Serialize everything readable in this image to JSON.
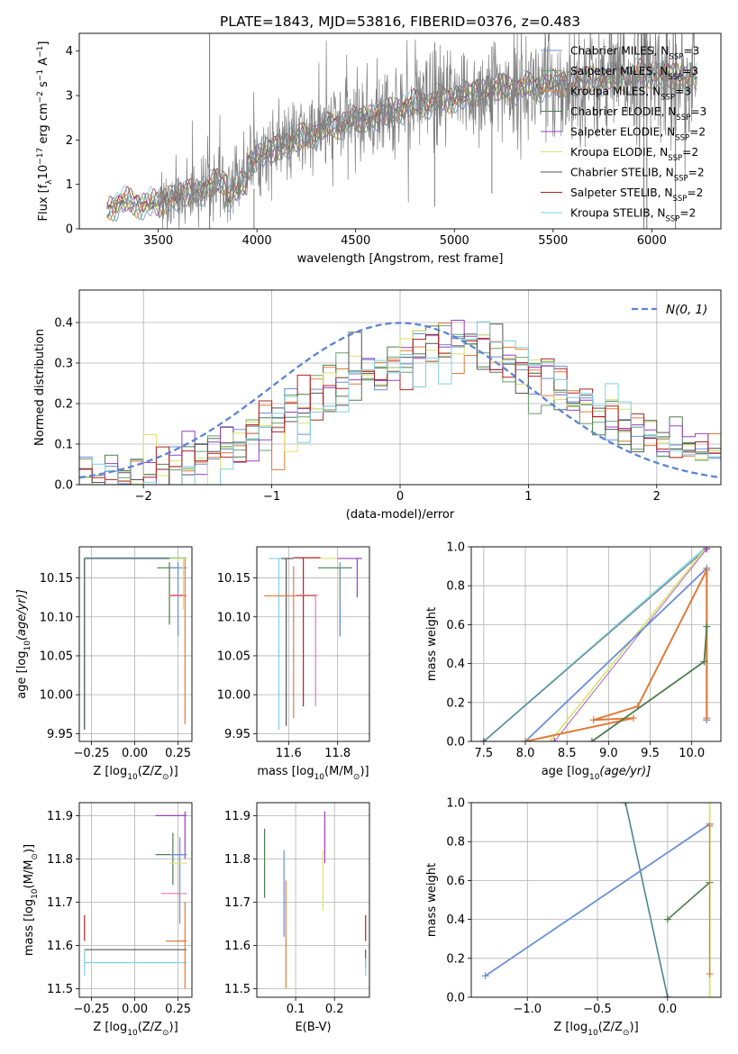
{
  "figure_title": "PLATE=1843, MJD=53816, FIBERID=0376, z=0.483",
  "colors": {
    "Chabrier MILES": "#6a8fd8",
    "Salpeter MILES": "#6aa06a",
    "Kroupa MILES": "#e07b3a",
    "Chabrier ELODIE": "#4e7d4e",
    "Salpeter ELODIE": "#9b3fc4",
    "Kroupa ELODIE": "#d9e36a",
    "Chabrier STELIB": "#555555",
    "Salpeter STELIB": "#b22222",
    "Kroupa STELIB": "#7fd0e0",
    "extra_pink": "#e07bb5",
    "normal": "#5b84d6",
    "data": "#808080"
  },
  "chart_data": [
    {
      "id": "spectrum",
      "type": "line",
      "title": "PLATE=1843, MJD=53816, FIBERID=0376, z=0.483",
      "xlabel": "wavelength [Angstrom, rest frame]",
      "ylabel": "Flux [f_λ 10^-17 erg cm^-2 s^-1 A^-1]",
      "xlim": [
        3100,
        6350
      ],
      "ylim": [
        0,
        4.4
      ],
      "xticks": [
        3500,
        4000,
        4500,
        5000,
        5500,
        6000
      ],
      "yticks": [
        0,
        1,
        2,
        3,
        4
      ],
      "grid": false,
      "legend_position": "top-right",
      "series": [
        {
          "name": "Chabrier MILES, N_SSP=3",
          "label": "Chabrier MILES, N",
          "sub": "SSP",
          "tail": "=3"
        },
        {
          "name": "Salpeter MILES, N_SSP=3",
          "label": "Salpeter MILES, N",
          "sub": "SSP",
          "tail": "=3"
        },
        {
          "name": "Kroupa MILES, N_SSP=3",
          "label": "Kroupa MILES, N",
          "sub": "SSP",
          "tail": "=3"
        },
        {
          "name": "Chabrier ELODIE, N_SSP=3",
          "label": "Chabrier ELODIE, N",
          "sub": "SSP",
          "tail": "=3"
        },
        {
          "name": "Salpeter ELODIE, N_SSP=2",
          "label": "Salpeter ELODIE, N",
          "sub": "SSP",
          "tail": "=2"
        },
        {
          "name": "Kroupa ELODIE, N_SSP=2",
          "label": "Kroupa ELODIE, N",
          "sub": "SSP",
          "tail": "=2"
        },
        {
          "name": "Chabrier STELIB, N_SSP=2",
          "label": "Chabrier STELIB, N",
          "sub": "SSP",
          "tail": "=2"
        },
        {
          "name": "Salpeter STELIB, N_SSP=2",
          "label": "Salpeter STELIB, N",
          "sub": "SSP",
          "tail": "=2"
        },
        {
          "name": "Kroupa STELIB, N_SSP=2",
          "label": "Kroupa STELIB, N",
          "sub": "SSP",
          "tail": "=2"
        }
      ],
      "continuum": [
        [
          3240,
          0.45
        ],
        [
          3300,
          0.6
        ],
        [
          3500,
          0.55
        ],
        [
          3550,
          0.7
        ],
        [
          3700,
          0.85
        ],
        [
          3900,
          1.2
        ],
        [
          4000,
          1.65
        ],
        [
          4200,
          2.0
        ],
        [
          4400,
          2.35
        ],
        [
          4600,
          2.55
        ],
        [
          4800,
          2.8
        ],
        [
          5000,
          2.95
        ],
        [
          5200,
          3.15
        ],
        [
          5400,
          3.2
        ],
        [
          5600,
          3.3
        ],
        [
          5800,
          3.4
        ],
        [
          6000,
          3.5
        ],
        [
          6200,
          3.4
        ]
      ]
    },
    {
      "id": "residuals",
      "type": "area",
      "xlabel": "(data-model)/error",
      "ylabel": "Normed distribution",
      "xlim": [
        -2.5,
        2.5
      ],
      "ylim": [
        0,
        0.48
      ],
      "xticks": [
        -2,
        -1,
        0,
        1,
        2
      ],
      "yticks": [
        0.0,
        0.1,
        0.2,
        0.3,
        0.4
      ],
      "grid": true,
      "legend_position": "top-right",
      "normal_label": "N(0, 1)"
    },
    {
      "id": "age_vs_Z",
      "type": "scatter",
      "xlabel": "Z [log10(Z/Z⊙)]",
      "ylabel": "age [log10(age/yr)]",
      "xlim": [
        -0.32,
        0.33
      ],
      "ylim": [
        9.94,
        10.19
      ],
      "xticks": [
        -0.25,
        0.0,
        0.25
      ],
      "yticks": [
        9.95,
        10.0,
        10.05,
        10.1,
        10.15
      ],
      "grid": true
    },
    {
      "id": "age_vs_mass",
      "type": "scatter",
      "xlabel": "mass [log10(M/M⊙)]",
      "ylabel": "",
      "xlim": [
        11.47,
        11.93
      ],
      "ylim": [
        9.94,
        10.19
      ],
      "xticks": [
        11.6,
        11.8
      ],
      "yticks": [
        9.95,
        10.0,
        10.05,
        10.1,
        10.15
      ],
      "grid": true
    },
    {
      "id": "weight_vs_age",
      "type": "line",
      "xlabel": "age [log10(age/yr)]",
      "ylabel": "mass weight",
      "xlim": [
        7.35,
        10.35
      ],
      "ylim": [
        0,
        1.0
      ],
      "xticks": [
        7.5,
        8.0,
        8.5,
        9.0,
        9.5,
        10.0
      ],
      "yticks": [
        0.0,
        0.2,
        0.4,
        0.6,
        0.8,
        1.0
      ],
      "grid": true
    },
    {
      "id": "mass_vs_Z",
      "type": "scatter",
      "xlabel": "Z [log10(Z/Z⊙)]",
      "ylabel": "mass [log10(M/M⊙)]",
      "xlim": [
        -0.32,
        0.33
      ],
      "ylim": [
        11.48,
        11.93
      ],
      "xticks": [
        -0.25,
        0.0,
        0.25
      ],
      "yticks": [
        11.5,
        11.6,
        11.7,
        11.8,
        11.9
      ],
      "grid": true
    },
    {
      "id": "mass_vs_ebv",
      "type": "scatter",
      "xlabel": "E(B-V)",
      "ylabel": "",
      "xlim": [
        0.0,
        0.29
      ],
      "ylim": [
        11.48,
        11.93
      ],
      "xticks": [
        0.1,
        0.2
      ],
      "yticks": [
        11.5,
        11.6,
        11.7,
        11.8,
        11.9
      ],
      "grid": true
    },
    {
      "id": "weight_vs_Z",
      "type": "line",
      "xlabel": "Z [log10(Z/Z⊙)]",
      "ylabel": "mass weight",
      "xlim": [
        -1.4,
        0.38
      ],
      "ylim": [
        0,
        1.0
      ],
      "xticks": [
        -1.0,
        -0.5,
        0.0
      ],
      "yticks": [
        0.0,
        0.2,
        0.4,
        0.6,
        0.8,
        1.0
      ],
      "grid": true
    }
  ]
}
